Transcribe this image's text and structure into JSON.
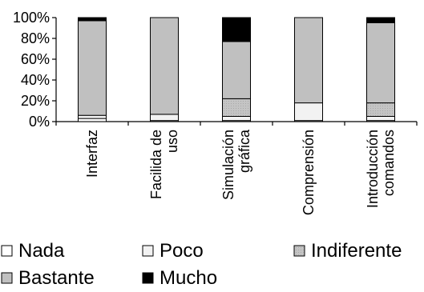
{
  "chart_data": {
    "type": "bar",
    "stacked": true,
    "categories": [
      [
        "Interfaz"
      ],
      [
        "Facilida de",
        "uso"
      ],
      [
        "Simulación",
        "gráfica"
      ],
      [
        "Comprensión"
      ],
      [
        "Introducción",
        "comandos"
      ]
    ],
    "ylim": [
      0,
      100
    ],
    "yticks": [
      "0%",
      "20%",
      "40%",
      "60%",
      "80%",
      "100%"
    ],
    "grid": false,
    "legend_position": "bottom",
    "series": [
      {
        "name": "Nada",
        "color": "#ffffff",
        "values": [
          3,
          1,
          1,
          1,
          1
        ]
      },
      {
        "name": "Poco",
        "color": "#f2f2f2",
        "values": [
          3,
          6,
          4,
          17,
          4
        ]
      },
      {
        "name": "Indiferente",
        "color": "#c0c0c0",
        "values": [
          0,
          0,
          17,
          0,
          13
        ]
      },
      {
        "name": "Bastante",
        "color": "#c0c0c0",
        "values": [
          91,
          93,
          55,
          82,
          77
        ]
      },
      {
        "name": "Mucho",
        "color": "#000000",
        "values": [
          3,
          0,
          23,
          0,
          5
        ]
      }
    ]
  }
}
